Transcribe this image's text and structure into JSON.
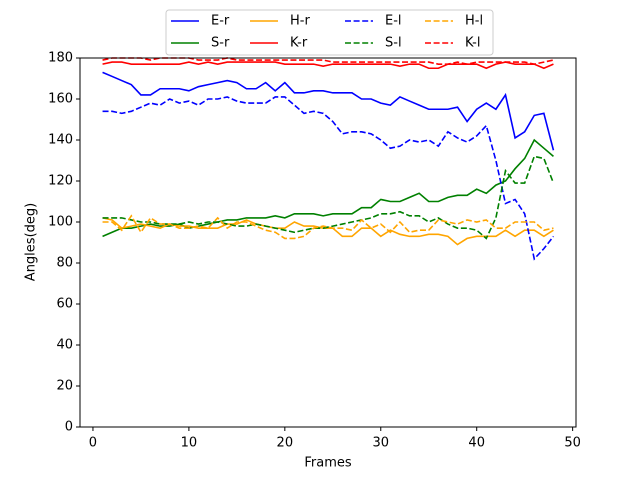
{
  "chart_data": {
    "type": "line",
    "x_label": "Frames",
    "y_label": "Angles(deg)",
    "x": [
      1,
      2,
      3,
      4,
      5,
      6,
      7,
      8,
      9,
      10,
      11,
      12,
      13,
      14,
      15,
      16,
      17,
      18,
      19,
      20,
      21,
      22,
      23,
      24,
      25,
      26,
      27,
      28,
      29,
      30,
      31,
      32,
      33,
      34,
      35,
      36,
      37,
      38,
      39,
      40,
      41,
      42,
      43,
      44,
      45,
      46,
      47,
      48
    ],
    "xlim": [
      -1.35,
      50.35
    ],
    "xticks": [
      0,
      10,
      20,
      30,
      40,
      50
    ],
    "ylim": [
      0,
      180
    ],
    "yticks": [
      0,
      20,
      40,
      60,
      80,
      100,
      120,
      140,
      160,
      180
    ],
    "legend": "upper center",
    "series": [
      {
        "name": "E-r",
        "color": "#0000ff",
        "linestyle": "solid",
        "values": [
          173,
          171,
          169,
          167,
          162,
          162,
          165,
          165,
          165,
          164,
          166,
          167,
          168,
          169,
          168,
          165,
          165,
          168,
          164,
          168,
          163,
          163,
          164,
          164,
          163,
          163,
          163,
          160,
          160,
          158,
          157,
          161,
          159,
          157,
          155,
          155,
          155,
          156,
          149,
          155,
          158,
          155,
          162,
          141,
          144,
          152,
          153,
          135
        ]
      },
      {
        "name": "S-r",
        "color": "#008000",
        "linestyle": "solid",
        "values": [
          93,
          95,
          97,
          97,
          98,
          99,
          98,
          98,
          99,
          97,
          98,
          99,
          100,
          101,
          101,
          102,
          102,
          102,
          103,
          102,
          104,
          104,
          104,
          103,
          104,
          104,
          104,
          107,
          107,
          111,
          110,
          110,
          112,
          114,
          110,
          110,
          112,
          113,
          113,
          116,
          114,
          118,
          120,
          126,
          131,
          140,
          136,
          132
        ]
      },
      {
        "name": "H-r",
        "color": "#ffa500",
        "linestyle": "solid",
        "values": [
          102,
          101,
          97,
          98,
          99,
          98,
          97,
          99,
          98,
          98,
          97,
          97,
          97,
          99,
          99,
          101,
          99,
          98,
          97,
          97,
          100,
          98,
          98,
          97,
          97,
          93,
          93,
          97,
          97,
          93,
          96,
          94,
          93,
          93,
          94,
          94,
          93,
          89,
          92,
          93,
          93,
          93,
          96,
          93,
          96,
          96,
          93,
          96
        ]
      },
      {
        "name": "K-r",
        "color": "#ff0000",
        "linestyle": "solid",
        "values": [
          177,
          178,
          178,
          177,
          177,
          177,
          177,
          177,
          177,
          178,
          177,
          178,
          177,
          178,
          178,
          178,
          178,
          178,
          178,
          177,
          177,
          177,
          177,
          176,
          177,
          177,
          177,
          177,
          177,
          177,
          177,
          176,
          177,
          177,
          175,
          175,
          177,
          177,
          177,
          177,
          175,
          177,
          178,
          177,
          177,
          177,
          175,
          177
        ]
      },
      {
        "name": "E-l",
        "color": "#0000ff",
        "linestyle": "dashed",
        "values": [
          154,
          154,
          153,
          154,
          156,
          158,
          157,
          160,
          158,
          159,
          157,
          160,
          160,
          161,
          159,
          158,
          158,
          158,
          161,
          161,
          157,
          153,
          154,
          153,
          149,
          143,
          144,
          144,
          143,
          140,
          136,
          137,
          140,
          139,
          140,
          137,
          144,
          141,
          139,
          142,
          147,
          130,
          109,
          111,
          104,
          82,
          87,
          93
        ]
      },
      {
        "name": "S-l",
        "color": "#008000",
        "linestyle": "dashed",
        "values": [
          102,
          102,
          102,
          101,
          100,
          100,
          99,
          99,
          99,
          100,
          99,
          100,
          100,
          99,
          98,
          98,
          99,
          98,
          97,
          96,
          95,
          96,
          97,
          97,
          98,
          99,
          100,
          101,
          102,
          104,
          104,
          105,
          103,
          103,
          100,
          102,
          99,
          97,
          97,
          96,
          92,
          102,
          125,
          119,
          119,
          132,
          131,
          119
        ]
      },
      {
        "name": "H-l",
        "color": "#ffa500",
        "linestyle": "dashed",
        "values": [
          100,
          100,
          96,
          103,
          95,
          102,
          99,
          99,
          97,
          97,
          98,
          97,
          102,
          97,
          100,
          100,
          98,
          96,
          95,
          92,
          92,
          93,
          97,
          98,
          97,
          97,
          96,
          101,
          97,
          99,
          95,
          100,
          95,
          96,
          96,
          101,
          100,
          99,
          101,
          100,
          101,
          97,
          97,
          100,
          100,
          100,
          96,
          97
        ]
      },
      {
        "name": "K-l",
        "color": "#ff0000",
        "linestyle": "dashed",
        "values": [
          179,
          180,
          180,
          180,
          180,
          179,
          180,
          180,
          180,
          180,
          179,
          179,
          179,
          180,
          179,
          179,
          179,
          179,
          179,
          179,
          179,
          179,
          179,
          179,
          178,
          178,
          178,
          178,
          178,
          178,
          178,
          178,
          178,
          178,
          178,
          177,
          177,
          178,
          177,
          178,
          178,
          178,
          178,
          178,
          178,
          177,
          178,
          179
        ]
      }
    ]
  }
}
